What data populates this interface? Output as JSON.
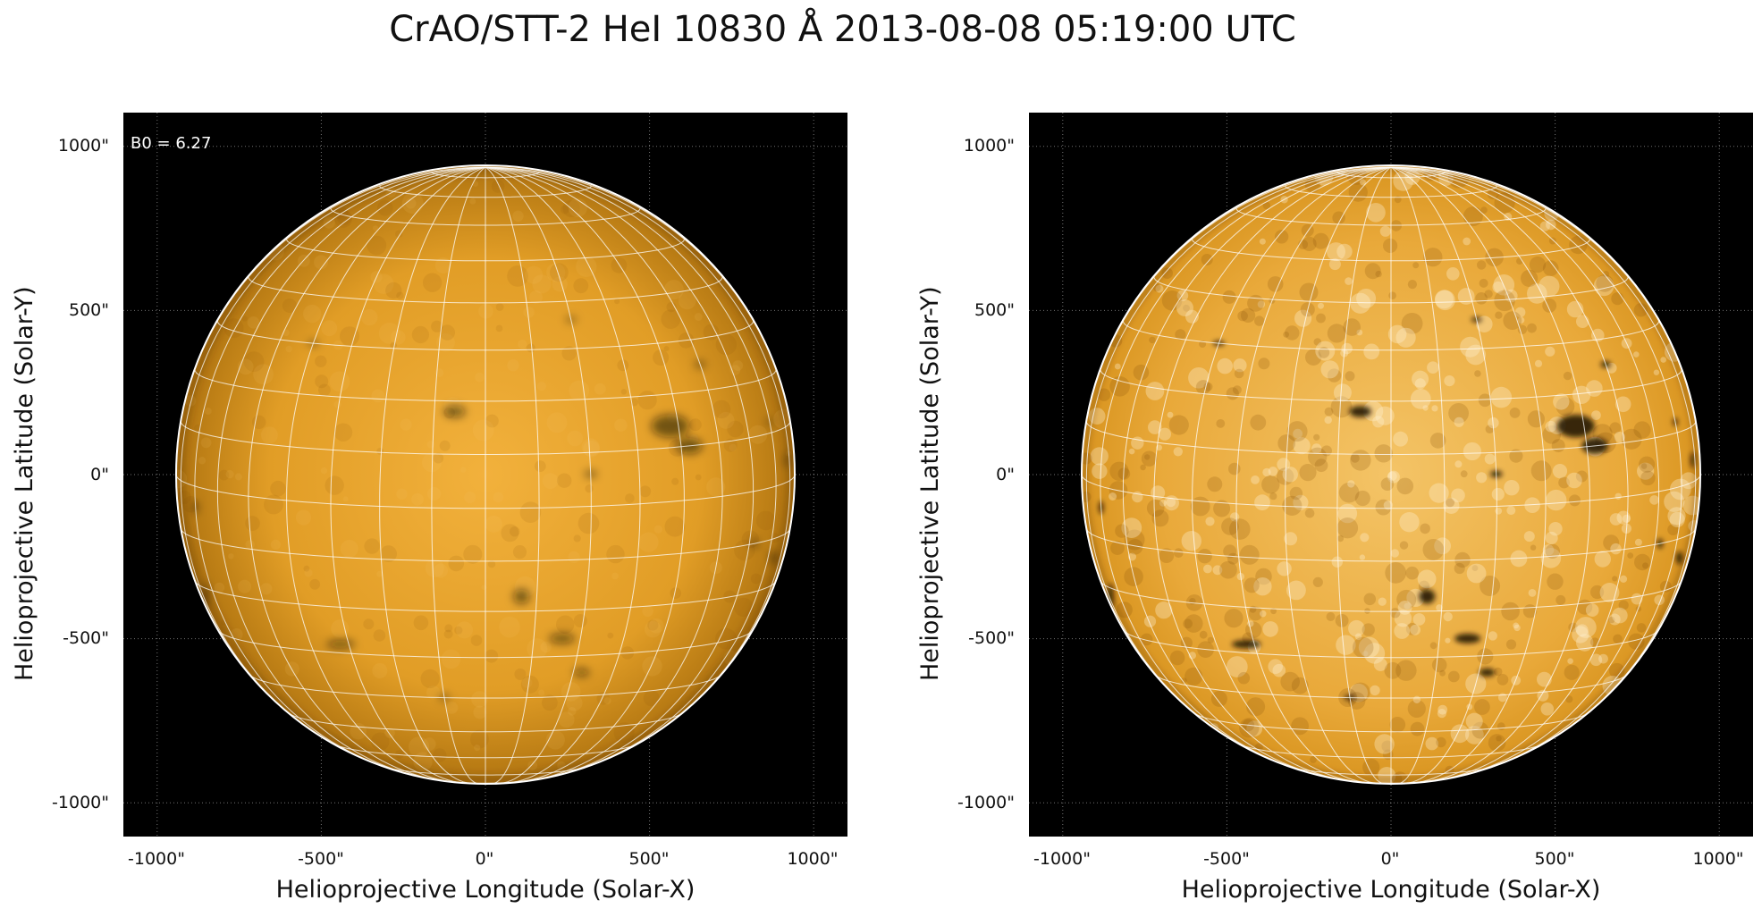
{
  "title": "CrAO/STT-2 HeI 10830 Å 2013-08-08 05:19:00 UTC",
  "panels": [
    {
      "annotation": "B0 = 6.27",
      "xlabel": "Helioprojective Longitude (Solar-X)",
      "ylabel": "Helioprojective Latitude (Solar-Y)",
      "xticks": [
        "-1000\"",
        "-500\"",
        "0\"",
        "500\"",
        "1000\""
      ],
      "yticks": [
        "1000\"",
        "500\"",
        "0\"",
        "-500\"",
        "-1000\""
      ],
      "contrast": "normal"
    },
    {
      "annotation": "",
      "xlabel": "Helioprojective Longitude (Solar-X)",
      "ylabel": "Helioprojective Latitude (Solar-Y)",
      "xticks": [
        "-1000\"",
        "-500\"",
        "0\"",
        "500\"",
        "1000\""
      ],
      "yticks": [
        "1000\"",
        "500\"",
        "0\"",
        "-500\"",
        "-1000\""
      ],
      "contrast": "enhanced"
    }
  ],
  "colors": {
    "background": "#000000",
    "disk_center": "#f2b13c",
    "disk_edge": "#b07410",
    "grid": "#ffffff"
  }
}
